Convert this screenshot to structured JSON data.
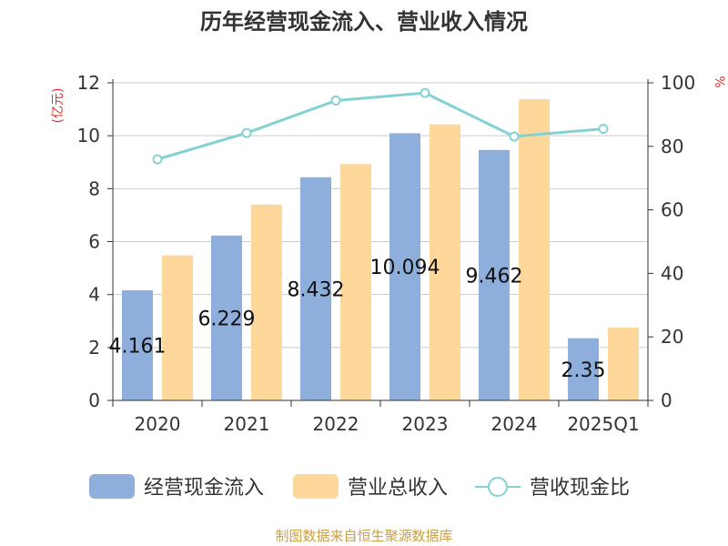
{
  "chart_data": {
    "type": "bar",
    "title": "历年经营现金流入、营业收入情况",
    "y_left_label": "(亿元)",
    "y_right_label": "%",
    "categories": [
      "2020",
      "2021",
      "2022",
      "2023",
      "2024",
      "2025Q1"
    ],
    "ylim_left": [
      0,
      12
    ],
    "yticks_left": [
      "0",
      "2",
      "4",
      "6",
      "8",
      "10",
      "12"
    ],
    "ylim_right": [
      0,
      100
    ],
    "yticks_right": [
      "0",
      "20",
      "40",
      "60",
      "80",
      "100"
    ],
    "grid": true,
    "legend_position": "bottom",
    "series": [
      {
        "name": "经营现金流入",
        "type": "bar",
        "axis": "left",
        "color": "#8eaedb",
        "values": [
          4.161,
          6.229,
          8.432,
          10.094,
          9.462,
          2.35
        ],
        "labels": [
          "4.161",
          "6.229",
          "8.432",
          "10.094",
          "9.462",
          "2.35"
        ]
      },
      {
        "name": "营业总收入",
        "type": "bar",
        "axis": "left",
        "color": "#fed89b",
        "values": [
          5.48,
          7.4,
          8.93,
          10.43,
          11.38,
          2.75
        ]
      },
      {
        "name": "营收现金比",
        "type": "line",
        "axis": "right",
        "color": "#84d1d4",
        "values": [
          75.9,
          84.2,
          94.4,
          96.8,
          83.1,
          85.5
        ]
      }
    ]
  },
  "source": "制图数据来自恒生聚源数据库"
}
